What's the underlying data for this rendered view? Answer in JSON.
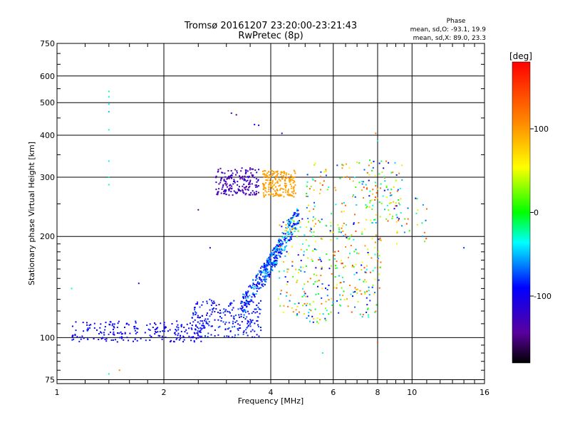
{
  "chart_data": {
    "type": "scatter",
    "title": "Tromsø 20161207 23:20:00-23:21:43",
    "subtitle": "RwPretec (8p)",
    "xlabel": "Frequency [MHz]",
    "ylabel": "Stationary phase Virtual Height [km]",
    "x_scale": "log",
    "y_scale": "log",
    "xlim": [
      1,
      16
    ],
    "ylim": [
      73,
      750
    ],
    "x_ticks": [
      1,
      2,
      4,
      6,
      8,
      10,
      16
    ],
    "x_tick_labels": [
      "1",
      "2",
      "4",
      "6",
      "8",
      "10",
      "16"
    ],
    "y_ticks": [
      75,
      100,
      200,
      300,
      400,
      500,
      600,
      750
    ],
    "y_tick_labels": [
      "75",
      "100",
      "200",
      "300",
      "400",
      "500",
      "600",
      "750"
    ],
    "grid": true,
    "phase_stats": {
      "header": "Phase",
      "line_o": "mean, sd,O: -93.1, 19.9",
      "line_x": "mean, sd,X:  89.0, 23.3"
    },
    "colorbar": {
      "label": "[deg]",
      "range": [
        -180,
        180
      ],
      "ticks": [
        100,
        0,
        -100
      ],
      "tick_labels": [
        "100",
        "0",
        "-100"
      ]
    },
    "clusters": [
      {
        "f": [
          1.1,
          2.6
        ],
        "h": [
          97,
          112
        ],
        "phase": [
          -110,
          -80
        ],
        "n": 220,
        "trend": "flat"
      },
      {
        "f": [
          2.4,
          3.8
        ],
        "h": [
          100,
          130
        ],
        "phase": [
          -110,
          -70
        ],
        "n": 220,
        "trend": "flat"
      },
      {
        "f": [
          3.3,
          4.3
        ],
        "h": [
          115,
          200
        ],
        "phase": [
          -110,
          -50
        ],
        "n": 220,
        "trend": "rise"
      },
      {
        "f": [
          3.8,
          4.8
        ],
        "h": [
          140,
          250
        ],
        "phase": [
          -110,
          -30
        ],
        "n": 200,
        "trend": "rise"
      },
      {
        "f": [
          4.2,
          6.0
        ],
        "h": [
          110,
          230
        ],
        "phase": [
          -110,
          130
        ],
        "n": 200,
        "trend": "none"
      },
      {
        "f": [
          6.0,
          8.2
        ],
        "h": [
          115,
          220
        ],
        "phase": [
          -100,
          150
        ],
        "n": 160,
        "trend": "none"
      },
      {
        "f": [
          2.8,
          3.7
        ],
        "h": [
          265,
          320
        ],
        "phase": [
          -150,
          -110
        ],
        "n": 180,
        "trend": "none"
      },
      {
        "f": [
          3.8,
          4.7
        ],
        "h": [
          262,
          315
        ],
        "phase": [
          90,
          105
        ],
        "n": 200,
        "trend": "none"
      },
      {
        "f": [
          7.4,
          9.4
        ],
        "h": [
          220,
          340
        ],
        "phase": [
          -120,
          140
        ],
        "n": 100,
        "trend": "none"
      },
      {
        "f": [
          5.0,
          7.4
        ],
        "h": [
          230,
          340
        ],
        "phase": [
          -80,
          150
        ],
        "n": 70,
        "trend": "none"
      },
      {
        "f": [
          9.0,
          11.0
        ],
        "h": [
          190,
          260
        ],
        "phase": [
          -100,
          160
        ],
        "n": 25,
        "trend": "none"
      }
    ],
    "points": [
      {
        "f": 1.4,
        "h": 540,
        "phase": -20
      },
      {
        "f": 1.4,
        "h": 520,
        "phase": -30
      },
      {
        "f": 1.4,
        "h": 495,
        "phase": -40
      },
      {
        "f": 1.4,
        "h": 470,
        "phase": -50
      },
      {
        "f": 1.4,
        "h": 415,
        "phase": -30
      },
      {
        "f": 1.4,
        "h": 335,
        "phase": -40
      },
      {
        "f": 1.4,
        "h": 300,
        "phase": -20
      },
      {
        "f": 1.4,
        "h": 285,
        "phase": -30
      },
      {
        "f": 1.4,
        "h": 78,
        "phase": -20
      },
      {
        "f": 1.1,
        "h": 140,
        "phase": -30
      },
      {
        "f": 3.1,
        "h": 465,
        "phase": -140
      },
      {
        "f": 3.2,
        "h": 460,
        "phase": -150
      },
      {
        "f": 3.6,
        "h": 430,
        "phase": -100
      },
      {
        "f": 3.7,
        "h": 428,
        "phase": -100
      },
      {
        "f": 4.3,
        "h": 405,
        "phase": -110
      },
      {
        "f": 8.0,
        "h": 385,
        "phase": -30
      },
      {
        "f": 7.9,
        "h": 405,
        "phase": 120
      },
      {
        "f": 14.0,
        "h": 185,
        "phase": -80
      },
      {
        "f": 1.5,
        "h": 80,
        "phase": 110
      },
      {
        "f": 1.7,
        "h": 145,
        "phase": -120
      },
      {
        "f": 2.7,
        "h": 185,
        "phase": -110
      },
      {
        "f": 2.5,
        "h": 240,
        "phase": -140
      },
      {
        "f": 8.0,
        "h": 97,
        "phase": 140
      },
      {
        "f": 5.6,
        "h": 90,
        "phase": -40
      }
    ]
  }
}
